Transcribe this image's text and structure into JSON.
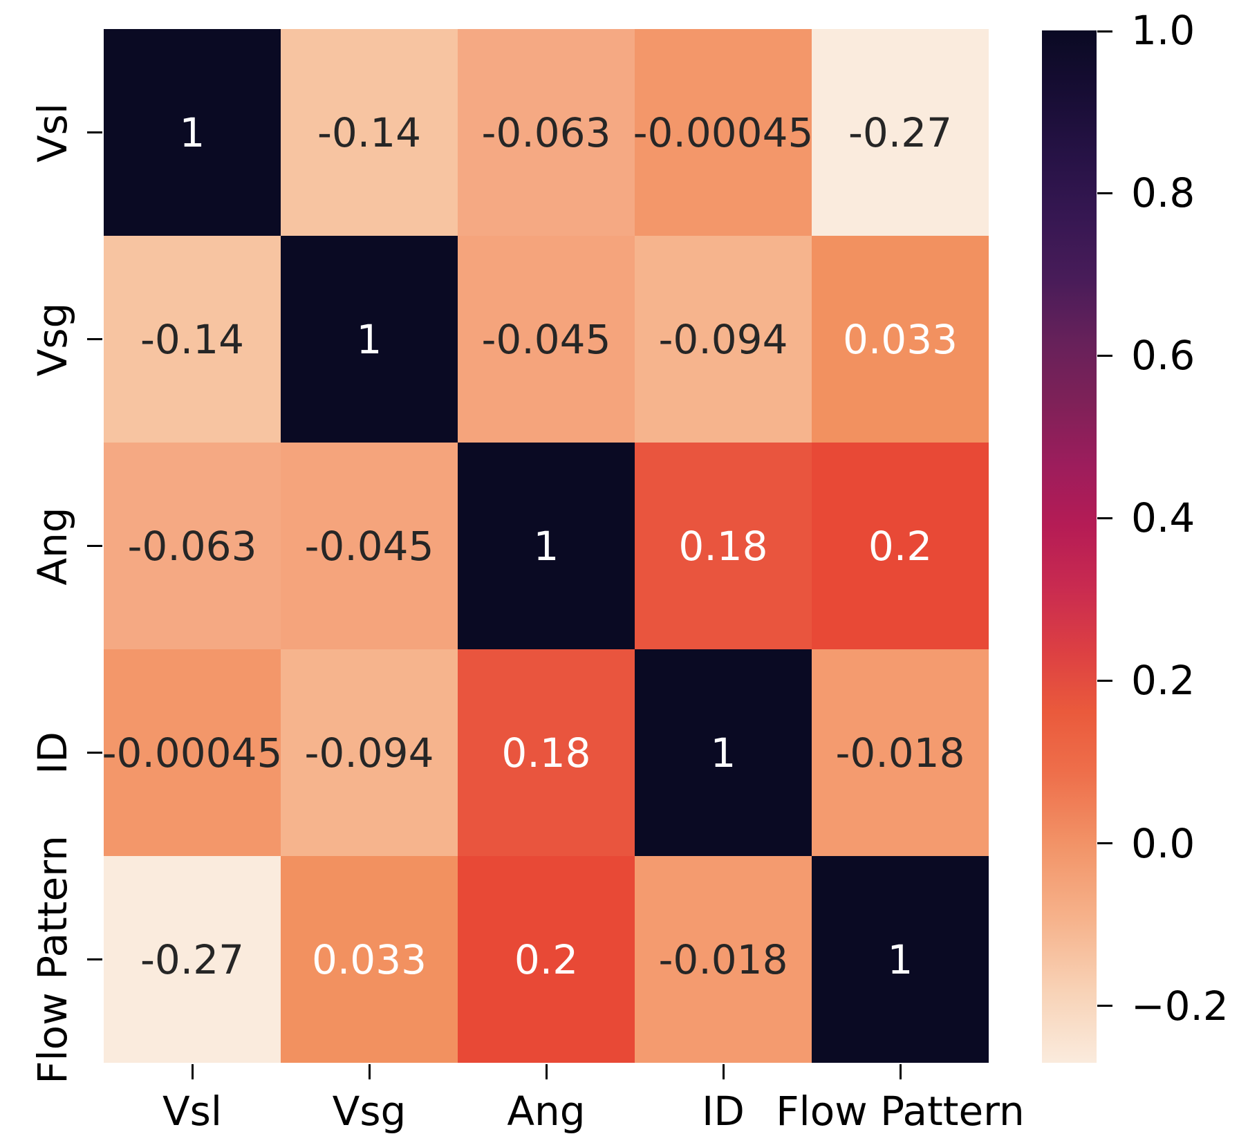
{
  "chart_data": {
    "type": "heatmap",
    "title": "",
    "xlabel": "",
    "ylabel": "",
    "categories": [
      "Vsl",
      "Vsg",
      "Ang",
      "ID",
      "Flow Pattern"
    ],
    "matrix": [
      [
        1,
        -0.14,
        -0.063,
        -0.00045,
        -0.27
      ],
      [
        -0.14,
        1,
        -0.045,
        -0.094,
        0.033
      ],
      [
        -0.063,
        -0.045,
        1,
        0.18,
        0.2
      ],
      [
        -0.00045,
        -0.094,
        0.18,
        1,
        -0.018
      ],
      [
        -0.27,
        0.033,
        0.2,
        -0.018,
        1
      ]
    ],
    "cell_labels": [
      [
        "1",
        "-0.14",
        "-0.063",
        "-0.00045",
        "-0.27"
      ],
      [
        "-0.14",
        "1",
        "-0.045",
        "-0.094",
        "0.033"
      ],
      [
        "-0.063",
        "-0.045",
        "1",
        "0.18",
        "0.2"
      ],
      [
        "-0.00045",
        "-0.094",
        "0.18",
        "1",
        "-0.018"
      ],
      [
        "-0.27",
        "0.033",
        "0.2",
        "-0.018",
        "1"
      ]
    ],
    "cell_colors": [
      [
        "#0A0A23",
        "#F7C4A1",
        "#F5A983",
        "#F3976A",
        "#FAEBDD"
      ],
      [
        "#F7C4A1",
        "#0A0A23",
        "#F5A47C",
        "#F6B48D",
        "#F29160"
      ],
      [
        "#F5A983",
        "#F5A47C",
        "#0A0A23",
        "#E9553E",
        "#E84936"
      ],
      [
        "#F3976A",
        "#F6B48D",
        "#E9553E",
        "#0A0A23",
        "#F49B6F"
      ],
      [
        "#FAEBDD",
        "#F29160",
        "#E84936",
        "#F49B6F",
        "#0A0A23"
      ]
    ],
    "cell_text_colors": [
      [
        "#FFFFFF",
        "#262626",
        "#262626",
        "#262626",
        "#262626"
      ],
      [
        "#262626",
        "#FFFFFF",
        "#262626",
        "#262626",
        "#FFFFFF"
      ],
      [
        "#262626",
        "#262626",
        "#FFFFFF",
        "#FFFFFF",
        "#FFFFFF"
      ],
      [
        "#262626",
        "#262626",
        "#FFFFFF",
        "#FFFFFF",
        "#262626"
      ],
      [
        "#262626",
        "#FFFFFF",
        "#FFFFFF",
        "#262626",
        "#FFFFFF"
      ]
    ],
    "grid": "off",
    "legend_position": "colorbar-right",
    "colorbar": {
      "vmin": -0.27,
      "vmax": 1.0,
      "tick_labels": [
        "1.0",
        "0.8",
        "0.6",
        "0.4",
        "0.2",
        "0.0",
        "−0.2"
      ],
      "tick_values": [
        1.0,
        0.8,
        0.6,
        0.4,
        0.2,
        0.0,
        -0.2
      ],
      "colormap_name": "rocket_r",
      "gradient": [
        {
          "pos": 0.0,
          "color": "#0A0A23"
        },
        {
          "pos": 0.06,
          "color": "#170D34"
        },
        {
          "pos": 0.12,
          "color": "#261245"
        },
        {
          "pos": 0.18,
          "color": "#361752"
        },
        {
          "pos": 0.24,
          "color": "#481C59"
        },
        {
          "pos": 0.3,
          "color": "#66215A"
        },
        {
          "pos": 0.36,
          "color": "#7E2158"
        },
        {
          "pos": 0.42,
          "color": "#9C1D5C"
        },
        {
          "pos": 0.48,
          "color": "#B51C55"
        },
        {
          "pos": 0.54,
          "color": "#C92B50"
        },
        {
          "pos": 0.6,
          "color": "#DC3F43"
        },
        {
          "pos": 0.66,
          "color": "#EA5A3C"
        },
        {
          "pos": 0.72,
          "color": "#EE6F4B"
        },
        {
          "pos": 0.79,
          "color": "#F29468"
        },
        {
          "pos": 0.86,
          "color": "#F6B28B"
        },
        {
          "pos": 0.93,
          "color": "#F8D2B6"
        },
        {
          "pos": 1.0,
          "color": "#FAEBDD"
        }
      ]
    },
    "colors": {
      "background": "#FFFFFF",
      "tick_color": "#000000",
      "annotation_dark": "#262626",
      "annotation_light": "#FFFFFF"
    }
  }
}
